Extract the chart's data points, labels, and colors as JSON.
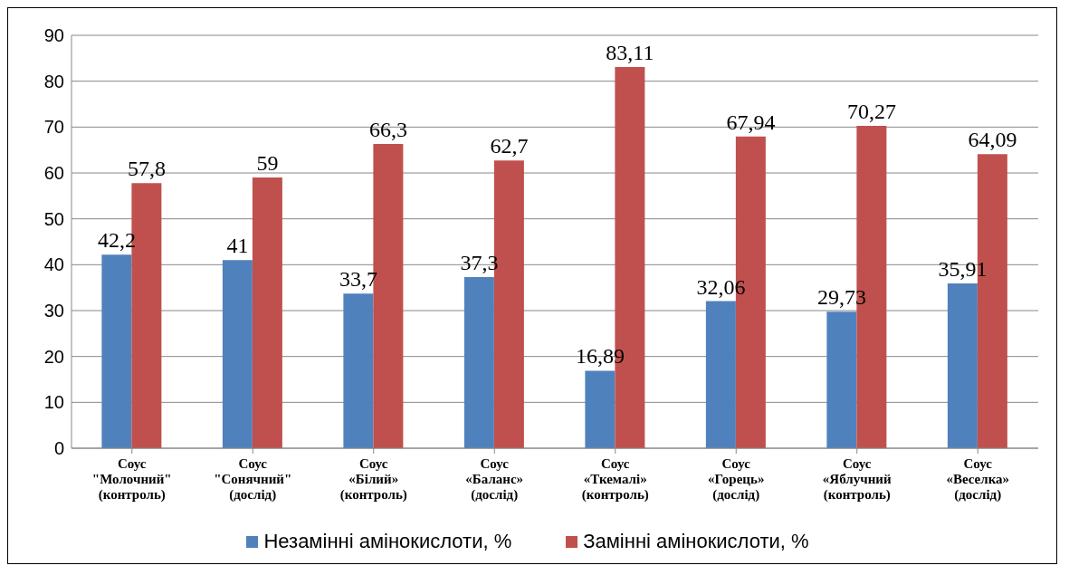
{
  "chart_data": {
    "type": "bar",
    "categories": [
      "Соус \"Молочний\" (контроль)",
      "Соус \"Сонячний\" (дослід)",
      "Соус «Білий» (контроль)",
      "Соус «Баланс» (дослід)",
      "Соус «Ткемалі» (контроль)",
      "Соус «Горець» (дослід)",
      "Соус «Яблучний (контроль)",
      "Соус «Веселка» (дослід)"
    ],
    "series": [
      {
        "name": "Незамінні амінокислоти, %",
        "color": "#4f81bd",
        "values": [
          42.2,
          41,
          33.7,
          37.3,
          16.89,
          32.06,
          29.73,
          35.91
        ],
        "value_labels": [
          "42,2",
          "41",
          "33,7",
          "37,3",
          "16,89",
          "32,06",
          "29,73",
          "35,91"
        ]
      },
      {
        "name": "Замінні амінокислоти, %",
        "color": "#c0504d",
        "values": [
          57.8,
          59,
          66.3,
          62.7,
          83.11,
          67.94,
          70.27,
          64.09
        ],
        "value_labels": [
          "57,8",
          "59",
          "66,3",
          "62,7",
          "83,11",
          "67,94",
          "70,27",
          "64,09"
        ]
      }
    ],
    "ylim": [
      0,
      90
    ],
    "yticks": [
      0,
      10,
      20,
      30,
      40,
      50,
      60,
      70,
      80,
      90
    ],
    "grid": "y",
    "legend": "bottom"
  }
}
